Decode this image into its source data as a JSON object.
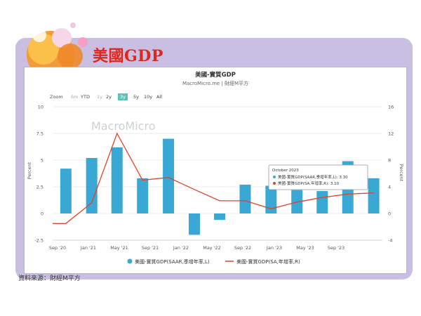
{
  "header": {
    "title": "美國GDP"
  },
  "source_note": "資料來源：財經M平方",
  "watermark": "MacroMicro",
  "zoom": {
    "label": "Zoom",
    "options": [
      "6m",
      "YTD",
      "1y",
      "2y",
      "3y",
      "5y",
      "10y",
      "All"
    ],
    "selected": "3y"
  },
  "colors": {
    "bar": "#3aa8d4",
    "line": "#e0432a",
    "accent": "#e0261b",
    "zoom_active": "#5bc4b7"
  },
  "tooltip": {
    "date": "October 2023",
    "lines": [
      "美國-實質GDP(SAAR,季增年率,L): 3.30",
      "美國-實質GDP(SA,年增率,R): 3.10"
    ]
  },
  "chart_data": {
    "type": "bar",
    "title": "美國-實質GDP",
    "subtitle": "MacroMicro.me | 財經M平方",
    "ylabel_left": "Percent",
    "ylabel_right": "Percent",
    "ylim_left": [
      -2.5,
      10
    ],
    "ylim_right": [
      -4,
      16
    ],
    "yticks_left": [
      "10",
      "7.5",
      "5",
      "2.5",
      "0",
      "-2.5"
    ],
    "yticks_right": [
      "16",
      "12",
      "8",
      "4",
      "0",
      "-4"
    ],
    "xticks": [
      "Sep '20",
      "Jan '21",
      "May '21",
      "Sep '21",
      "Jan '22",
      "May '22",
      "Sep '22",
      "Jan '23",
      "May '23",
      "Sep '23"
    ],
    "xlim": [
      "2020-08-15",
      "2023-11-01"
    ],
    "legend_position": "bottom",
    "series": [
      {
        "name": "美國-實質GDP(SAAR,季增年率,L)",
        "type": "bar",
        "axis": "left",
        "x": [
          "2020-10-01",
          "2021-01-01",
          "2021-04-01",
          "2021-07-01",
          "2021-10-01",
          "2022-01-01",
          "2022-04-01",
          "2022-07-01",
          "2022-10-01",
          "2023-01-01",
          "2023-04-01",
          "2023-07-01",
          "2023-10-01"
        ],
        "values": [
          4.2,
          5.2,
          6.2,
          3.3,
          7.0,
          -2.0,
          -0.6,
          2.7,
          2.6,
          2.2,
          2.1,
          4.9,
          3.3
        ]
      },
      {
        "name": "美國-實質GDP(SA,年增率,R)",
        "type": "line",
        "axis": "right",
        "x": [
          "2020-08-15",
          "2020-10-01",
          "2021-01-01",
          "2021-04-01",
          "2021-07-01",
          "2021-10-01",
          "2022-01-01",
          "2022-04-01",
          "2022-07-01",
          "2022-10-01",
          "2023-01-01",
          "2023-04-01",
          "2023-07-01",
          "2023-10-01"
        ],
        "values": [
          -1.5,
          -1.5,
          1.6,
          12.0,
          5.0,
          5.4,
          3.6,
          1.9,
          1.9,
          0.7,
          1.7,
          2.4,
          2.9,
          3.1
        ]
      }
    ]
  }
}
